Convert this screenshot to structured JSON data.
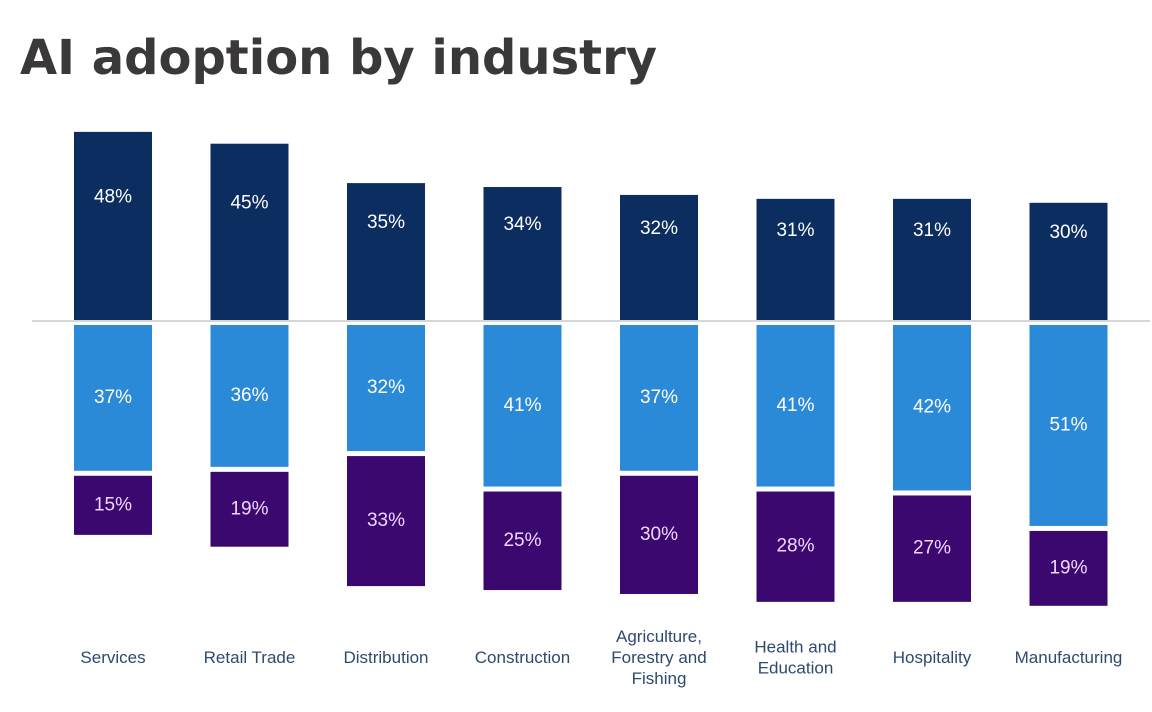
{
  "chart_data": {
    "type": "bar",
    "title": "AI adoption by industry",
    "xlabel": "",
    "ylabel": "",
    "layout": "diverging-stacked",
    "baseline": "horizontal line separating top segment (above) from lower segments (below)",
    "legend": "none",
    "grid": false,
    "categories": [
      [
        "Services"
      ],
      [
        "Retail Trade"
      ],
      [
        "Distribution"
      ],
      [
        "Construction"
      ],
      [
        "Agriculture,",
        "Forestry and",
        "Fishing"
      ],
      [
        "Health and",
        "Education"
      ],
      [
        "Hospitality"
      ],
      [
        "Manufacturing"
      ]
    ],
    "series": [
      {
        "name": "above-baseline",
        "color": "#0c2d5f",
        "values": [
          48,
          45,
          35,
          34,
          32,
          31,
          31,
          30
        ]
      },
      {
        "name": "below-baseline-1",
        "color": "#2b8ad8",
        "values": [
          37,
          36,
          32,
          41,
          37,
          41,
          42,
          51
        ]
      },
      {
        "name": "below-baseline-2",
        "color": "#3b0870",
        "values": [
          15,
          19,
          33,
          25,
          30,
          28,
          27,
          19
        ]
      }
    ],
    "value_suffix": "%",
    "baseline_color": "#c8c8c8"
  }
}
